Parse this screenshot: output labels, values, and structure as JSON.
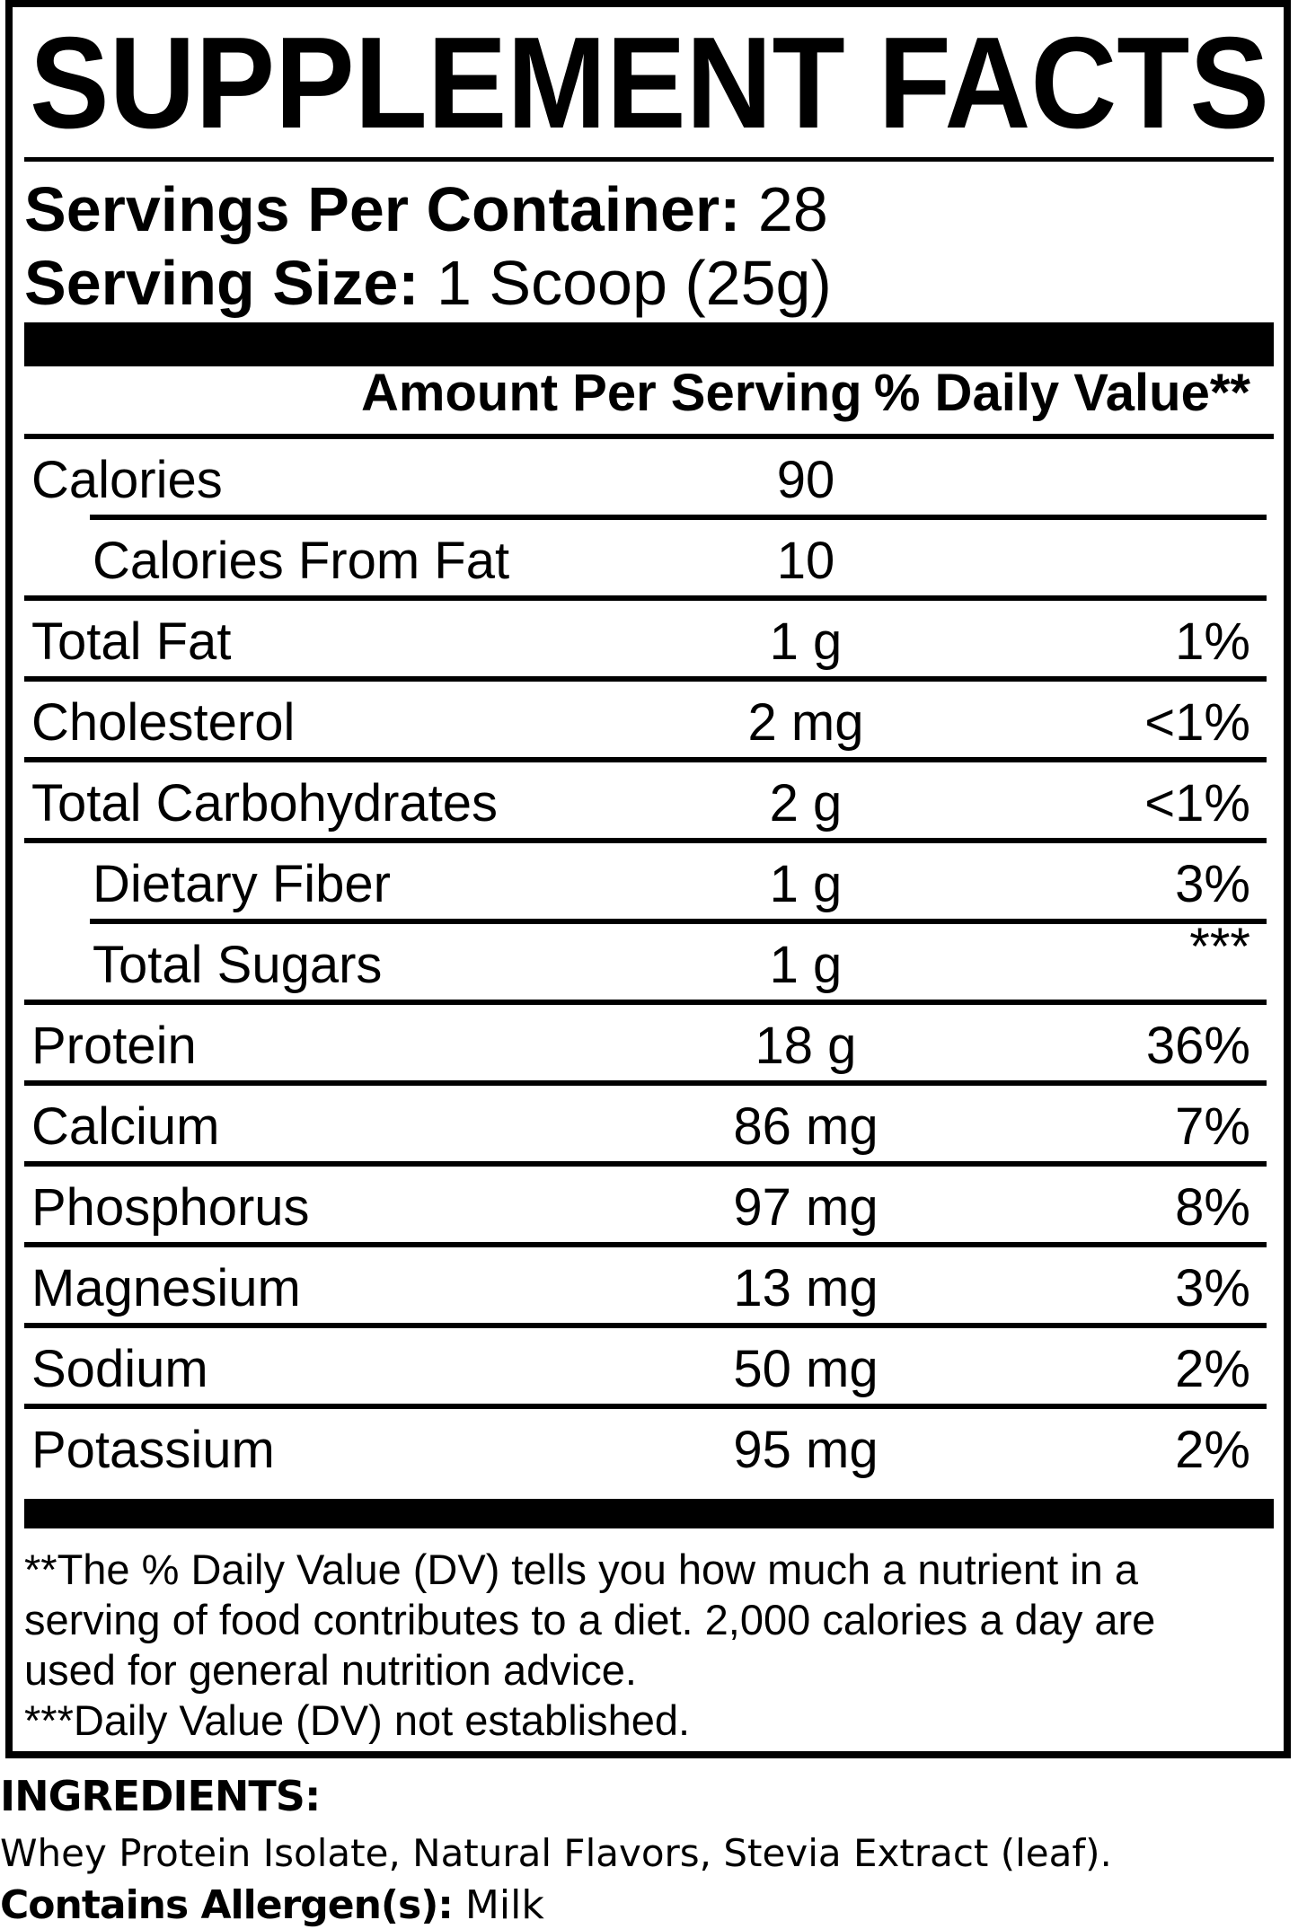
{
  "panel": {
    "title": "SUPPLEMENT FACTS",
    "servings_per_container_label": "Servings Per Container:",
    "servings_per_container_value": "28",
    "serving_size_label": "Serving Size:",
    "serving_size_value": "1 Scoop (25g)",
    "columns": {
      "amount_header": "Amount Per Serving",
      "daily_value_header": "% Daily Value**"
    },
    "rows": [
      {
        "label": "Calories",
        "amount": "90",
        "dv": "",
        "indent": false,
        "dv_raised": false,
        "sep": "indented"
      },
      {
        "label": "Calories From Fat",
        "amount": "10",
        "dv": "",
        "indent": true,
        "dv_raised": false,
        "sep": "full"
      },
      {
        "label": "Total Fat",
        "amount": "1 g",
        "dv": "1%",
        "indent": false,
        "dv_raised": false,
        "sep": "full"
      },
      {
        "label": "Cholesterol",
        "amount": "2 mg",
        "dv": "<1%",
        "indent": false,
        "dv_raised": false,
        "sep": "full"
      },
      {
        "label": "Total Carbohydrates",
        "amount": "2 g",
        "dv": "<1%",
        "indent": false,
        "dv_raised": false,
        "sep": "full"
      },
      {
        "label": "Dietary Fiber",
        "amount": "1 g",
        "dv": "3%",
        "indent": true,
        "dv_raised": false,
        "sep": "indented"
      },
      {
        "label": "Total Sugars",
        "amount": "1 g",
        "dv": "***",
        "indent": true,
        "dv_raised": true,
        "sep": "full"
      },
      {
        "label": "Protein",
        "amount": "18 g",
        "dv": "36%",
        "indent": false,
        "dv_raised": false,
        "sep": "full"
      },
      {
        "label": "Calcium",
        "amount": "86 mg",
        "dv": "7%",
        "indent": false,
        "dv_raised": false,
        "sep": "full"
      },
      {
        "label": "Phosphorus",
        "amount": "97 mg",
        "dv": "8%",
        "indent": false,
        "dv_raised": false,
        "sep": "full"
      },
      {
        "label": "Magnesium",
        "amount": "13 mg",
        "dv": "3%",
        "indent": false,
        "dv_raised": false,
        "sep": "full"
      },
      {
        "label": "Sodium",
        "amount": "50 mg",
        "dv": "2%",
        "indent": false,
        "dv_raised": false,
        "sep": "full"
      },
      {
        "label": "Potassium",
        "amount": "95 mg",
        "dv": "2%",
        "indent": false,
        "dv_raised": false,
        "sep": "none"
      }
    ],
    "footnote_lines": [
      "**The % Daily Value (DV) tells you how much a nutrient in a",
      "serving of food contributes to a diet. 2,000 calories a day are",
      "used for general nutrition advice.",
      "***Daily Value (DV) not established."
    ]
  },
  "ingredients": {
    "heading": "INGREDIENTS:",
    "list": "Whey Protein Isolate, Natural Flavors, Stevia Extract (leaf).",
    "allergen_label": "Contains Allergen(s):",
    "allergen_value": "Milk"
  }
}
